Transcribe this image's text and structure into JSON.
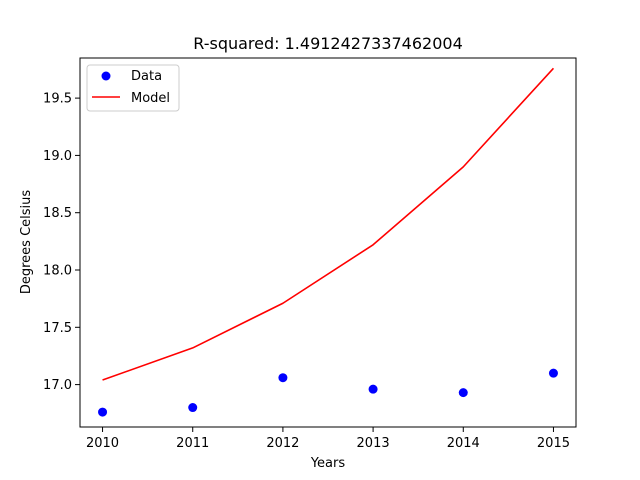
{
  "chart_data": {
    "type": "line",
    "title": "R-squared: 1.4912427337462004",
    "xlabel": "Years",
    "ylabel": "Degrees Celsius",
    "x": [
      2010,
      2011,
      2012,
      2013,
      2014,
      2015
    ],
    "xticks": [
      "2010",
      "2011",
      "2012",
      "2013",
      "2014",
      "2015"
    ],
    "yticks": [
      "17.0",
      "17.5",
      "18.0",
      "18.5",
      "19.0",
      "19.5"
    ],
    "xlim": [
      2009.75,
      2015.25
    ],
    "ylim": [
      16.63,
      19.85
    ],
    "grid": false,
    "legend_position": "top-left",
    "series": [
      {
        "name": "Data",
        "kind": "scatter",
        "color": "#0000ff",
        "values": [
          16.76,
          16.8,
          17.06,
          16.96,
          16.93,
          17.1
        ]
      },
      {
        "name": "Model",
        "kind": "line",
        "color": "#ff0000",
        "values": [
          17.04,
          17.32,
          17.71,
          18.22,
          18.9,
          19.76
        ]
      }
    ]
  }
}
